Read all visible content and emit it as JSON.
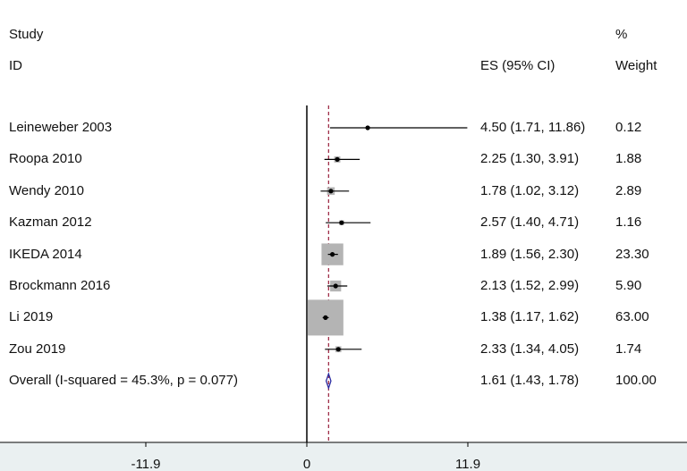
{
  "headers": {
    "study_line1": "Study",
    "study_line2": "ID",
    "es_label": "ES (95% CI)",
    "weight_line1": "%",
    "weight_line2": "Weight"
  },
  "chart_data": {
    "type": "forest",
    "title": "",
    "xlabel": "",
    "ylabel": "",
    "null_line": 0,
    "overall_es": 1.61,
    "x_ticks": [
      "-11.9",
      "0",
      "11.9"
    ],
    "x_tick_values": [
      -11.9,
      0,
      11.9
    ],
    "xlim": [
      -11.9,
      11.9
    ],
    "studies": [
      {
        "id": "Leineweber 2003",
        "es": 4.5,
        "lo": 1.71,
        "hi": 11.86,
        "es_text": "4.50 (1.71, 11.86)",
        "weight": 0.12,
        "weight_text": "0.12"
      },
      {
        "id": "Roopa 2010",
        "es": 2.25,
        "lo": 1.3,
        "hi": 3.91,
        "es_text": "2.25 (1.30, 3.91)",
        "weight": 1.88,
        "weight_text": "1.88"
      },
      {
        "id": "Wendy 2010",
        "es": 1.78,
        "lo": 1.02,
        "hi": 3.12,
        "es_text": "1.78 (1.02, 3.12)",
        "weight": 2.89,
        "weight_text": "2.89"
      },
      {
        "id": "Kazman 2012",
        "es": 2.57,
        "lo": 1.4,
        "hi": 4.71,
        "es_text": "2.57 (1.40, 4.71)",
        "weight": 1.16,
        "weight_text": "1.16"
      },
      {
        "id": "IKEDA 2014",
        "es": 1.89,
        "lo": 1.56,
        "hi": 2.3,
        "es_text": "1.89 (1.56, 2.30)",
        "weight": 23.3,
        "weight_text": "23.30"
      },
      {
        "id": "Brockmann 2016",
        "es": 2.13,
        "lo": 1.52,
        "hi": 2.99,
        "es_text": "2.13 (1.52, 2.99)",
        "weight": 5.9,
        "weight_text": "5.90"
      },
      {
        "id": "Li 2019",
        "es": 1.38,
        "lo": 1.17,
        "hi": 1.62,
        "es_text": "1.38 (1.17, 1.62)",
        "weight": 63.0,
        "weight_text": "63.00"
      },
      {
        "id": "Zou 2019",
        "es": 2.33,
        "lo": 1.34,
        "hi": 4.05,
        "es_text": "2.33 (1.34, 4.05)",
        "weight": 1.74,
        "weight_text": "1.74"
      }
    ],
    "overall": {
      "label": "Overall  (I-squared = 45.3%, p = 0.077)",
      "es": 1.61,
      "lo": 1.43,
      "hi": 1.78,
      "es_text": "1.61 (1.43, 1.78)",
      "weight": 100.0,
      "weight_text": "100.00"
    },
    "colors": {
      "box": "#b4b4b4",
      "null_line": "#000000",
      "overall_line": "#a0304a",
      "diamond": "#2a2aa0",
      "axis_strip": "#eaf0f1"
    }
  }
}
